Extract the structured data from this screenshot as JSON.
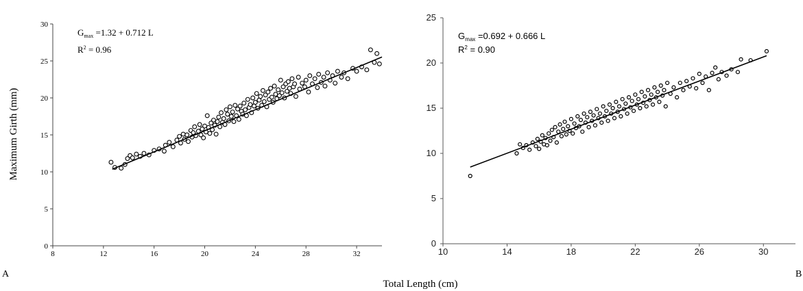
{
  "figure": {
    "shared_ylabel": "Maximum Girth (mm)",
    "shared_xlabel": "Total Length (cm)",
    "panel_labels": [
      "A",
      "B"
    ]
  },
  "chart_data": [
    {
      "type": "scatter",
      "panel": "A",
      "title": "",
      "xlabel": "Total Length (cm)",
      "ylabel": "Maximum Girth (mm)",
      "xlim": [
        8,
        34
      ],
      "ylim": [
        0,
        30
      ],
      "xticks": [
        8,
        12,
        16,
        20,
        24,
        28,
        32
      ],
      "yticks": [
        0,
        5,
        10,
        15,
        20,
        25,
        30
      ],
      "grid": false,
      "marker": "open-circle",
      "fit": {
        "intercept": 1.32,
        "slope": 0.712,
        "x_range": [
          12.7,
          34
        ]
      },
      "equation": {
        "prefix": "G",
        "subscript": "max",
        "rest": " =1.32 + 0.712 L",
        "r2_text": "R",
        "r2_sup": "2",
        "r2_value": " = 0.96"
      },
      "series": [
        {
          "points": [
            [
              12.6,
              11.3
            ],
            [
              12.9,
              10.6
            ],
            [
              13.4,
              10.5
            ],
            [
              13.7,
              11.0
            ],
            [
              13.9,
              11.8
            ],
            [
              14.1,
              12.2
            ],
            [
              14.3,
              11.9
            ],
            [
              14.6,
              12.4
            ],
            [
              14.9,
              12.1
            ],
            [
              15.2,
              12.5
            ],
            [
              15.6,
              12.3
            ],
            [
              16.0,
              12.9
            ],
            [
              16.4,
              13.1
            ],
            [
              16.8,
              12.8
            ],
            [
              16.9,
              13.6
            ],
            [
              17.2,
              14.0
            ],
            [
              17.5,
              13.4
            ],
            [
              17.8,
              14.3
            ],
            [
              18.0,
              14.8
            ],
            [
              18.1,
              13.9
            ],
            [
              18.3,
              15.1
            ],
            [
              18.4,
              14.4
            ],
            [
              18.6,
              15.0
            ],
            [
              18.7,
              14.1
            ],
            [
              18.9,
              15.6
            ],
            [
              19.0,
              14.7
            ],
            [
              19.1,
              15.3
            ],
            [
              19.2,
              16.1
            ],
            [
              19.3,
              14.9
            ],
            [
              19.5,
              15.5
            ],
            [
              19.6,
              16.4
            ],
            [
              19.7,
              15.0
            ],
            [
              19.8,
              15.8
            ],
            [
              19.9,
              14.6
            ],
            [
              20.0,
              16.2
            ],
            [
              20.1,
              15.4
            ],
            [
              20.2,
              17.6
            ],
            [
              20.3,
              16.0
            ],
            [
              20.4,
              15.2
            ],
            [
              20.5,
              16.6
            ],
            [
              20.6,
              15.7
            ],
            [
              20.7,
              17.0
            ],
            [
              20.8,
              16.3
            ],
            [
              20.9,
              15.1
            ],
            [
              21.0,
              16.8
            ],
            [
              21.1,
              17.4
            ],
            [
              21.2,
              16.1
            ],
            [
              21.3,
              18.0
            ],
            [
              21.4,
              16.7
            ],
            [
              21.5,
              17.2
            ],
            [
              21.6,
              16.4
            ],
            [
              21.7,
              18.4
            ],
            [
              21.8,
              17.8
            ],
            [
              21.9,
              16.9
            ],
            [
              22.0,
              18.8
            ],
            [
              22.1,
              17.5
            ],
            [
              22.2,
              18.1
            ],
            [
              22.3,
              16.8
            ],
            [
              22.4,
              19.0
            ],
            [
              22.5,
              17.6
            ],
            [
              22.6,
              18.5
            ],
            [
              22.7,
              17.1
            ],
            [
              22.8,
              18.9
            ],
            [
              22.9,
              18.2
            ],
            [
              23.0,
              17.8
            ],
            [
              23.1,
              19.3
            ],
            [
              23.2,
              18.4
            ],
            [
              23.3,
              17.6
            ],
            [
              23.4,
              19.8
            ],
            [
              23.5,
              18.7
            ],
            [
              23.6,
              19.1
            ],
            [
              23.7,
              18.0
            ],
            [
              23.8,
              20.0
            ],
            [
              23.9,
              18.9
            ],
            [
              24.0,
              19.4
            ],
            [
              24.1,
              20.6
            ],
            [
              24.2,
              18.6
            ],
            [
              24.3,
              19.7
            ],
            [
              24.4,
              20.2
            ],
            [
              24.5,
              19.0
            ],
            [
              24.6,
              21.0
            ],
            [
              24.7,
              19.5
            ],
            [
              24.8,
              20.4
            ],
            [
              24.9,
              18.8
            ],
            [
              25.0,
              20.8
            ],
            [
              25.1,
              19.8
            ],
            [
              25.2,
              21.3
            ],
            [
              25.3,
              20.1
            ],
            [
              25.4,
              19.4
            ],
            [
              25.5,
              21.6
            ],
            [
              25.6,
              20.5
            ],
            [
              25.7,
              19.9
            ],
            [
              25.8,
              21.1
            ],
            [
              25.9,
              20.3
            ],
            [
              26.0,
              22.4
            ],
            [
              26.1,
              20.7
            ],
            [
              26.2,
              21.5
            ],
            [
              26.3,
              20.0
            ],
            [
              26.4,
              21.9
            ],
            [
              26.5,
              20.9
            ],
            [
              26.6,
              22.2
            ],
            [
              26.7,
              21.3
            ],
            [
              26.8,
              20.6
            ],
            [
              26.9,
              22.6
            ],
            [
              27.0,
              21.5
            ],
            [
              27.1,
              21.9
            ],
            [
              27.2,
              20.2
            ],
            [
              27.4,
              22.8
            ],
            [
              27.5,
              21.2
            ],
            [
              27.7,
              22.0
            ],
            [
              27.9,
              21.5
            ],
            [
              28.0,
              22.4
            ],
            [
              28.2,
              20.8
            ],
            [
              28.3,
              23.0
            ],
            [
              28.5,
              21.9
            ],
            [
              28.7,
              22.6
            ],
            [
              28.9,
              21.4
            ],
            [
              29.0,
              23.2
            ],
            [
              29.2,
              22.1
            ],
            [
              29.4,
              22.8
            ],
            [
              29.5,
              21.6
            ],
            [
              29.7,
              23.4
            ],
            [
              29.9,
              22.4
            ],
            [
              30.1,
              23.0
            ],
            [
              30.3,
              22.0
            ],
            [
              30.5,
              23.6
            ],
            [
              30.8,
              22.8
            ],
            [
              31.0,
              23.4
            ],
            [
              31.3,
              22.6
            ],
            [
              31.7,
              24.0
            ],
            [
              32.0,
              23.6
            ],
            [
              32.4,
              24.2
            ],
            [
              32.8,
              23.8
            ],
            [
              33.1,
              26.5
            ],
            [
              33.4,
              24.8
            ],
            [
              33.6,
              26.0
            ],
            [
              33.8,
              24.6
            ]
          ]
        }
      ]
    },
    {
      "type": "scatter",
      "panel": "B",
      "title": "",
      "xlabel": "Total Length (cm)",
      "ylabel": "Maximum Girth (mm)",
      "xlim": [
        10,
        32
      ],
      "ylim": [
        0,
        25
      ],
      "xticks": [
        10,
        14,
        18,
        22,
        26,
        30
      ],
      "yticks": [
        0,
        5,
        10,
        15,
        20,
        25
      ],
      "grid": false,
      "marker": "open-circle",
      "fit": {
        "intercept": 0.692,
        "slope": 0.666,
        "x_range": [
          11.7,
          30.2
        ]
      },
      "equation": {
        "prefix": "G",
        "subscript": "max",
        "rest": " =0.692 + 0.666 L",
        "r2_text": "R",
        "r2_sup": "2",
        "r2_value": " = 0.90"
      },
      "series": [
        {
          "points": [
            [
              11.7,
              7.5
            ],
            [
              14.6,
              10.0
            ],
            [
              14.8,
              11.0
            ],
            [
              15.0,
              10.6
            ],
            [
              15.2,
              10.9
            ],
            [
              15.4,
              10.4
            ],
            [
              15.6,
              11.2
            ],
            [
              15.8,
              10.8
            ],
            [
              15.9,
              11.6
            ],
            [
              16.0,
              10.5
            ],
            [
              16.1,
              11.3
            ],
            [
              16.2,
              12.0
            ],
            [
              16.3,
              11.0
            ],
            [
              16.4,
              11.7
            ],
            [
              16.5,
              10.9
            ],
            [
              16.6,
              12.2
            ],
            [
              16.7,
              11.4
            ],
            [
              16.8,
              12.6
            ],
            [
              16.9,
              11.8
            ],
            [
              17.0,
              12.9
            ],
            [
              17.1,
              11.2
            ],
            [
              17.2,
              12.4
            ],
            [
              17.3,
              13.2
            ],
            [
              17.4,
              11.9
            ],
            [
              17.5,
              12.7
            ],
            [
              17.6,
              13.5
            ],
            [
              17.7,
              12.1
            ],
            [
              17.8,
              13.0
            ],
            [
              17.9,
              12.5
            ],
            [
              18.0,
              13.8
            ],
            [
              18.1,
              12.2
            ],
            [
              18.2,
              13.3
            ],
            [
              18.3,
              12.8
            ],
            [
              18.4,
              14.1
            ],
            [
              18.5,
              13.0
            ],
            [
              18.6,
              13.7
            ],
            [
              18.7,
              12.4
            ],
            [
              18.8,
              14.4
            ],
            [
              18.9,
              13.4
            ],
            [
              19.0,
              14.0
            ],
            [
              19.1,
              12.9
            ],
            [
              19.2,
              14.6
            ],
            [
              19.3,
              13.6
            ],
            [
              19.4,
              14.2
            ],
            [
              19.5,
              13.1
            ],
            [
              19.6,
              14.9
            ],
            [
              19.7,
              13.9
            ],
            [
              19.8,
              14.4
            ],
            [
              19.9,
              13.4
            ],
            [
              20.0,
              15.2
            ],
            [
              20.1,
              14.1
            ],
            [
              20.2,
              14.7
            ],
            [
              20.3,
              13.6
            ],
            [
              20.4,
              15.4
            ],
            [
              20.5,
              14.4
            ],
            [
              20.6,
              15.0
            ],
            [
              20.7,
              13.9
            ],
            [
              20.8,
              15.7
            ],
            [
              20.9,
              14.6
            ],
            [
              21.0,
              15.2
            ],
            [
              21.1,
              14.1
            ],
            [
              21.2,
              16.0
            ],
            [
              21.3,
              14.9
            ],
            [
              21.4,
              15.5
            ],
            [
              21.5,
              14.4
            ],
            [
              21.6,
              16.2
            ],
            [
              21.7,
              15.1
            ],
            [
              21.8,
              15.8
            ],
            [
              21.9,
              14.7
            ],
            [
              22.0,
              16.5
            ],
            [
              22.1,
              15.4
            ],
            [
              22.2,
              16.0
            ],
            [
              22.3,
              15.0
            ],
            [
              22.4,
              16.8
            ],
            [
              22.5,
              15.6
            ],
            [
              22.6,
              16.3
            ],
            [
              22.7,
              15.2
            ],
            [
              22.8,
              17.0
            ],
            [
              22.9,
              15.9
            ],
            [
              23.0,
              16.5
            ],
            [
              23.1,
              15.4
            ],
            [
              23.2,
              17.3
            ],
            [
              23.3,
              16.2
            ],
            [
              23.4,
              16.8
            ],
            [
              23.5,
              15.7
            ],
            [
              23.6,
              17.5
            ],
            [
              23.7,
              16.4
            ],
            [
              23.8,
              17.0
            ],
            [
              23.9,
              15.2
            ],
            [
              24.0,
              17.8
            ],
            [
              24.2,
              16.6
            ],
            [
              24.4,
              17.3
            ],
            [
              24.6,
              16.2
            ],
            [
              24.8,
              17.8
            ],
            [
              25.0,
              17.0
            ],
            [
              25.2,
              18.0
            ],
            [
              25.4,
              17.4
            ],
            [
              25.6,
              18.3
            ],
            [
              25.8,
              17.2
            ],
            [
              26.0,
              18.8
            ],
            [
              26.2,
              17.8
            ],
            [
              26.4,
              18.5
            ],
            [
              26.6,
              17.0
            ],
            [
              26.8,
              18.9
            ],
            [
              27.0,
              19.5
            ],
            [
              27.2,
              18.2
            ],
            [
              27.4,
              19.0
            ],
            [
              27.7,
              18.6
            ],
            [
              28.0,
              19.3
            ],
            [
              28.4,
              19.0
            ],
            [
              28.6,
              20.4
            ],
            [
              29.2,
              20.3
            ],
            [
              30.2,
              21.3
            ]
          ]
        }
      ]
    }
  ]
}
